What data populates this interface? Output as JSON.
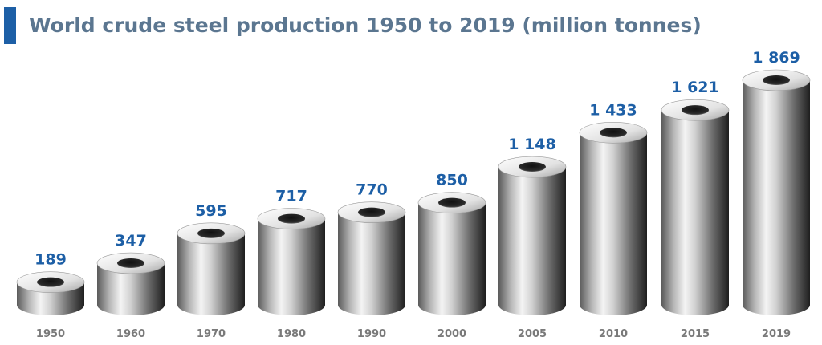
{
  "chart_data": {
    "type": "cylinder",
    "title": "World crude steel production 1950 to 2019 (million tonnes)",
    "categories": [
      "1950",
      "1960",
      "1970",
      "1980",
      "1990",
      "2000",
      "2005",
      "2010",
      "2015",
      "2019"
    ],
    "values": [
      189,
      347,
      595,
      717,
      770,
      850,
      1148,
      1433,
      1621,
      1869
    ],
    "value_labels": [
      "189",
      "347",
      "595",
      "717",
      "770",
      "850",
      "1 148",
      "1 433",
      "1 621",
      "1 869"
    ]
  }
}
